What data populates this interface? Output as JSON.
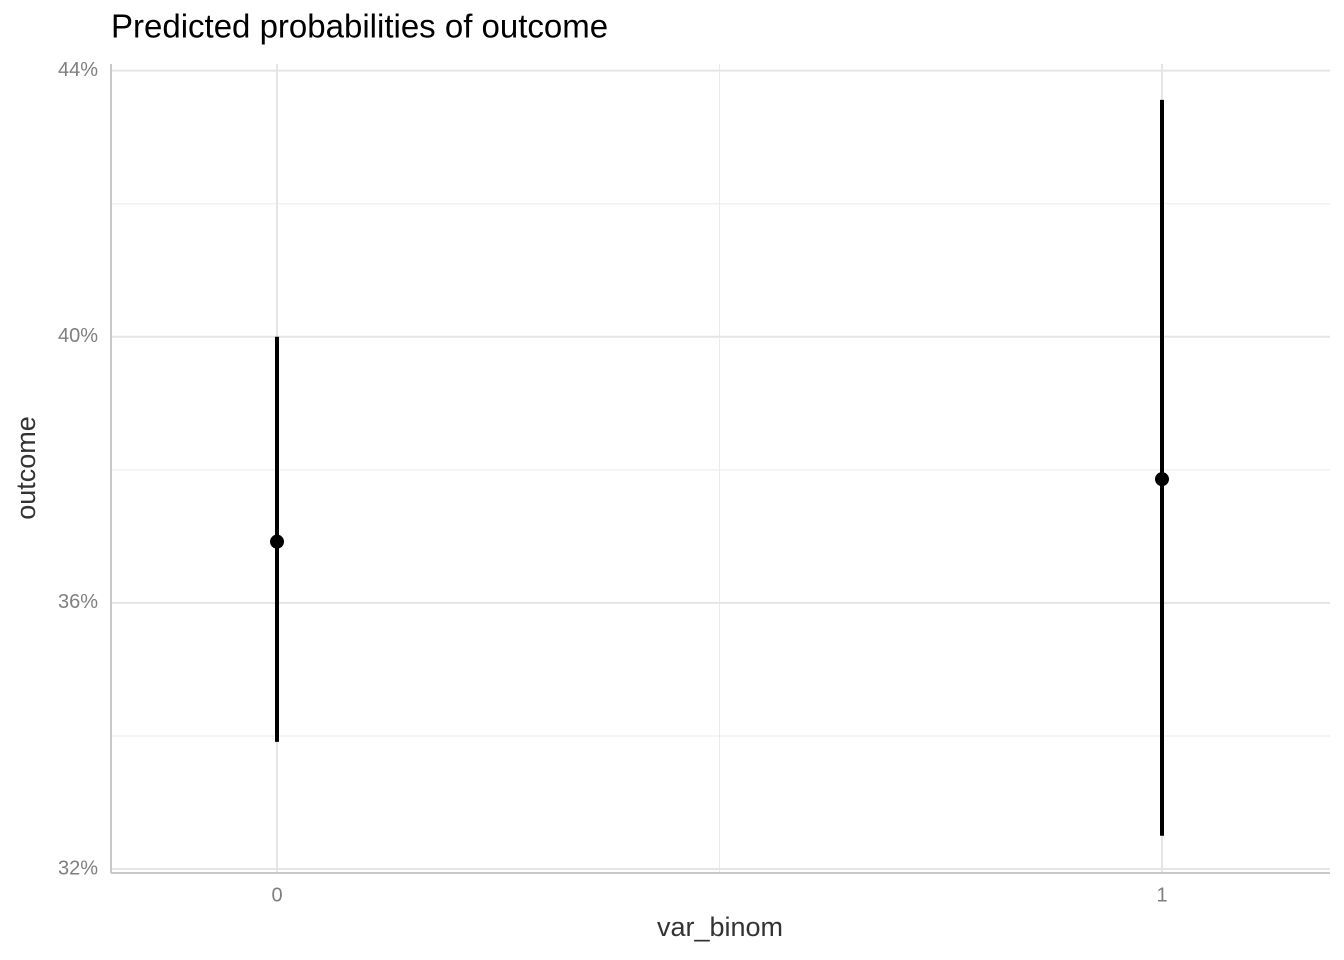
{
  "chart_data": {
    "type": "pointrange",
    "title": "Predicted probabilities of outcome",
    "x_label": "var_binom",
    "y_label": "outcome",
    "categories": [
      "0",
      "1"
    ],
    "values": [
      36.92,
      37.86
    ],
    "lower": [
      33.91,
      32.5
    ],
    "upper": [
      40.0,
      43.56
    ],
    "color": "#000000",
    "ylim": [
      31.94,
      44.1
    ],
    "yticks": [
      {
        "value": 32,
        "label": "32%"
      },
      {
        "value": 36,
        "label": "36%"
      },
      {
        "value": 40,
        "label": "40%"
      },
      {
        "value": 44,
        "label": "44%"
      }
    ],
    "grid": true
  }
}
